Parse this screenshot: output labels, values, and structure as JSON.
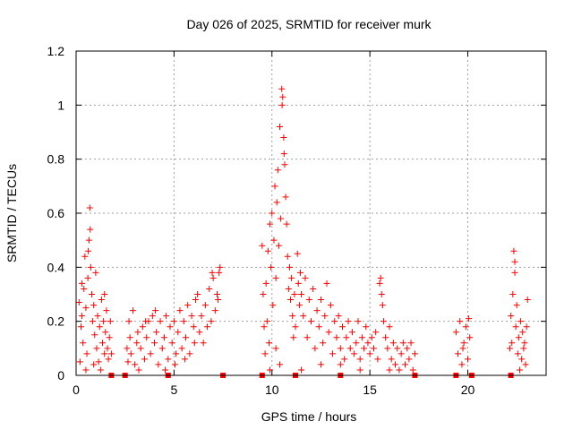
{
  "chart_data": {
    "type": "scatter",
    "title": "Day 026 of 2025, SRMTID for receiver murk",
    "xlabel": "GPS time / hours",
    "ylabel": "SRMTID / TECUs",
    "xlim": [
      0,
      24
    ],
    "ylim": [
      0,
      1.2
    ],
    "xticks": [
      0,
      5,
      10,
      15,
      20
    ],
    "xtick_labels": [
      "0",
      "5",
      "10",
      "15",
      "20"
    ],
    "yticks": [
      0,
      0.2,
      0.4,
      0.6,
      0.8,
      1.0,
      1.2
    ],
    "ytick_labels": [
      "0",
      "0.2",
      "0.4",
      "0.6",
      "0.8",
      "1",
      "1.2"
    ],
    "grid": true,
    "marker": "+",
    "series": [
      {
        "name": "SRMTID",
        "color": "#ff0000",
        "points": [
          [
            0.15,
            0.27
          ],
          [
            0.2,
            0.05
          ],
          [
            0.25,
            0.18
          ],
          [
            0.3,
            0.22
          ],
          [
            0.35,
            0.12
          ],
          [
            0.4,
            0.32
          ],
          [
            0.45,
            0.44
          ],
          [
            0.5,
            0.25
          ],
          [
            0.55,
            0.08
          ],
          [
            0.6,
            0.36
          ],
          [
            0.62,
            0.46
          ],
          [
            0.66,
            0.5
          ],
          [
            0.7,
            0.62
          ],
          [
            0.72,
            0.54
          ],
          [
            0.75,
            0.4
          ],
          [
            0.8,
            0.3
          ],
          [
            0.85,
            0.2
          ],
          [
            0.9,
            0.26
          ],
          [
            0.95,
            0.15
          ],
          [
            1.0,
            0.38
          ],
          [
            1.05,
            0.1
          ],
          [
            1.1,
            0.22
          ],
          [
            1.15,
            0.05
          ],
          [
            1.2,
            0.18
          ],
          [
            1.3,
            0.28
          ],
          [
            1.35,
            0.12
          ],
          [
            1.4,
            0.2
          ],
          [
            1.45,
            0.08
          ],
          [
            1.5,
            0.16
          ],
          [
            1.55,
            0.24
          ],
          [
            1.6,
            0.1
          ],
          [
            1.65,
            0.06
          ],
          [
            1.7,
            0.14
          ],
          [
            1.75,
            0.2
          ],
          [
            1.8,
            0.08
          ],
          [
            0.3,
            0.34
          ],
          [
            0.5,
            0.02
          ],
          [
            0.9,
            0.04
          ],
          [
            1.25,
            0.02
          ],
          [
            1.45,
            0.3
          ],
          [
            2.6,
            0.1
          ],
          [
            2.65,
            0.05
          ],
          [
            2.7,
            0.2
          ],
          [
            2.75,
            0.14
          ],
          [
            2.8,
            0.08
          ],
          [
            2.9,
            0.24
          ],
          [
            3.0,
            0.04
          ],
          [
            3.1,
            0.12
          ],
          [
            3.2,
            0.02
          ],
          [
            3.3,
            0.1
          ],
          [
            3.4,
            0.18
          ],
          [
            3.5,
            0.06
          ],
          [
            3.6,
            0.14
          ],
          [
            3.7,
            0.2
          ],
          [
            3.8,
            0.08
          ],
          [
            3.9,
            0.22
          ],
          [
            4.0,
            0.12
          ],
          [
            4.1,
            0.16
          ],
          [
            4.2,
            0.04
          ],
          [
            4.3,
            0.2
          ],
          [
            4.4,
            0.1
          ],
          [
            4.5,
            0.14
          ],
          [
            4.6,
            0.22
          ],
          [
            4.7,
            0.06
          ],
          [
            4.8,
            0.18
          ],
          [
            4.9,
            0.12
          ],
          [
            5.0,
            0.2
          ],
          [
            5.1,
            0.08
          ],
          [
            5.2,
            0.16
          ],
          [
            5.3,
            0.24
          ],
          [
            5.4,
            0.1
          ],
          [
            5.5,
            0.2
          ],
          [
            5.6,
            0.14
          ],
          [
            5.7,
            0.26
          ],
          [
            5.8,
            0.08
          ],
          [
            5.9,
            0.22
          ],
          [
            6.0,
            0.18
          ],
          [
            6.1,
            0.28
          ],
          [
            6.2,
            0.3
          ],
          [
            6.3,
            0.16
          ],
          [
            6.4,
            0.22
          ],
          [
            6.5,
            0.12
          ],
          [
            6.6,
            0.26
          ],
          [
            6.7,
            0.18
          ],
          [
            6.8,
            0.32
          ],
          [
            6.9,
            0.2
          ],
          [
            7.0,
            0.36
          ],
          [
            7.1,
            0.24
          ],
          [
            7.2,
            0.3
          ],
          [
            7.3,
            0.38
          ],
          [
            7.35,
            0.4
          ],
          [
            7.25,
            0.28
          ],
          [
            6.95,
            0.38
          ],
          [
            3.15,
            0.16
          ],
          [
            3.55,
            0.2
          ],
          [
            4.05,
            0.24
          ],
          [
            4.55,
            0.02
          ],
          [
            5.05,
            0.04
          ],
          [
            5.55,
            0.06
          ],
          [
            6.05,
            0.12
          ],
          [
            9.5,
            0.48
          ],
          [
            9.55,
            0.3
          ],
          [
            9.6,
            0.18
          ],
          [
            9.65,
            0.08
          ],
          [
            9.7,
            0.34
          ],
          [
            9.75,
            0.2
          ],
          [
            9.8,
            0.46
          ],
          [
            9.85,
            0.12
          ],
          [
            9.9,
            0.56
          ],
          [
            9.95,
            0.4
          ],
          [
            10.0,
            0.6
          ],
          [
            10.05,
            0.26
          ],
          [
            10.1,
            0.5
          ],
          [
            10.15,
            0.7
          ],
          [
            10.2,
            0.36
          ],
          [
            10.25,
            0.64
          ],
          [
            10.3,
            0.76
          ],
          [
            10.35,
            0.48
          ],
          [
            10.4,
            0.92
          ],
          [
            10.45,
            0.58
          ],
          [
            10.5,
            1.06
          ],
          [
            10.52,
            1.0
          ],
          [
            10.55,
            1.03
          ],
          [
            10.6,
            0.88
          ],
          [
            10.62,
            0.82
          ],
          [
            10.65,
            0.78
          ],
          [
            10.7,
            0.66
          ],
          [
            10.75,
            0.56
          ],
          [
            10.8,
            0.44
          ],
          [
            10.85,
            0.32
          ],
          [
            10.9,
            0.4
          ],
          [
            10.95,
            0.28
          ],
          [
            11.0,
            0.36
          ],
          [
            11.05,
            0.22
          ],
          [
            11.1,
            0.14
          ],
          [
            11.15,
            0.3
          ],
          [
            11.2,
            0.18
          ],
          [
            10.2,
            0.1
          ],
          [
            10.4,
            0.04
          ],
          [
            9.9,
            0.02
          ],
          [
            11.3,
            0.45
          ],
          [
            11.35,
            0.34
          ],
          [
            11.4,
            0.26
          ],
          [
            11.45,
            0.38
          ],
          [
            11.5,
            0.3
          ],
          [
            11.6,
            0.22
          ],
          [
            11.7,
            0.36
          ],
          [
            11.8,
            0.14
          ],
          [
            11.9,
            0.28
          ],
          [
            12.0,
            0.2
          ],
          [
            12.1,
            0.32
          ],
          [
            12.2,
            0.1
          ],
          [
            12.3,
            0.24
          ],
          [
            12.4,
            0.18
          ],
          [
            12.5,
            0.28
          ],
          [
            12.6,
            0.12
          ],
          [
            12.7,
            0.22
          ],
          [
            12.8,
            0.34
          ],
          [
            12.9,
            0.16
          ],
          [
            13.0,
            0.26
          ],
          [
            13.1,
            0.08
          ],
          [
            13.2,
            0.2
          ],
          [
            13.3,
            0.14
          ],
          [
            13.4,
            0.22
          ],
          [
            13.5,
            0.1
          ],
          [
            13.6,
            0.18
          ],
          [
            13.7,
            0.06
          ],
          [
            13.8,
            0.14
          ],
          [
            13.9,
            0.2
          ],
          [
            14.0,
            0.1
          ],
          [
            14.1,
            0.16
          ],
          [
            14.2,
            0.08
          ],
          [
            14.3,
            0.12
          ],
          [
            14.4,
            0.2
          ],
          [
            14.5,
            0.06
          ],
          [
            14.6,
            0.14
          ],
          [
            14.7,
            0.1
          ],
          [
            14.8,
            0.18
          ],
          [
            14.9,
            0.12
          ],
          [
            15.0,
            0.08
          ],
          [
            15.1,
            0.14
          ],
          [
            15.2,
            0.1
          ],
          [
            15.3,
            0.16
          ],
          [
            15.4,
            0.06
          ],
          [
            15.5,
            0.34
          ],
          [
            15.55,
            0.36
          ],
          [
            15.6,
            0.3
          ],
          [
            15.65,
            0.26
          ],
          [
            15.7,
            0.2
          ],
          [
            15.8,
            0.14
          ],
          [
            15.9,
            0.1
          ],
          [
            16.0,
            0.18
          ],
          [
            16.1,
            0.06
          ],
          [
            16.2,
            0.12
          ],
          [
            16.3,
            0.04
          ],
          [
            16.4,
            0.1
          ],
          [
            16.5,
            0.02
          ],
          [
            16.6,
            0.08
          ],
          [
            16.7,
            0.12
          ],
          [
            16.8,
            0.04
          ],
          [
            16.9,
            0.1
          ],
          [
            17.0,
            0.06
          ],
          [
            17.1,
            0.12
          ],
          [
            17.2,
            0.02
          ],
          [
            17.3,
            0.08
          ],
          [
            11.5,
            0.02
          ],
          [
            12.5,
            0.04
          ],
          [
            13.5,
            0.04
          ],
          [
            14.5,
            0.02
          ],
          [
            16.0,
            0.02
          ],
          [
            19.4,
            0.16
          ],
          [
            19.5,
            0.08
          ],
          [
            19.6,
            0.2
          ],
          [
            19.7,
            0.04
          ],
          [
            19.8,
            0.12
          ],
          [
            19.9,
            0.18
          ],
          [
            20.0,
            0.06
          ],
          [
            20.05,
            0.21
          ],
          [
            20.1,
            0.14
          ],
          [
            19.75,
            0.1
          ],
          [
            22.2,
            0.22
          ],
          [
            22.25,
            0.12
          ],
          [
            22.3,
            0.3
          ],
          [
            22.35,
            0.46
          ],
          [
            22.4,
            0.38
          ],
          [
            22.45,
            0.18
          ],
          [
            22.5,
            0.26
          ],
          [
            22.55,
            0.08
          ],
          [
            22.6,
            0.14
          ],
          [
            22.7,
            0.2
          ],
          [
            22.75,
            0.06
          ],
          [
            22.8,
            0.16
          ],
          [
            22.85,
            0.1
          ],
          [
            22.9,
            0.12
          ],
          [
            22.95,
            0.04
          ],
          [
            23.0,
            0.18
          ],
          [
            23.05,
            0.28
          ],
          [
            22.65,
            0.02
          ],
          [
            22.4,
            0.42
          ],
          [
            22.15,
            0.1
          ]
        ]
      }
    ],
    "gap_markers": [
      1.8,
      2.5,
      4.7,
      7.5,
      9.5,
      11.2,
      13.5,
      17.3,
      19.4,
      20.2,
      22.2
    ]
  }
}
